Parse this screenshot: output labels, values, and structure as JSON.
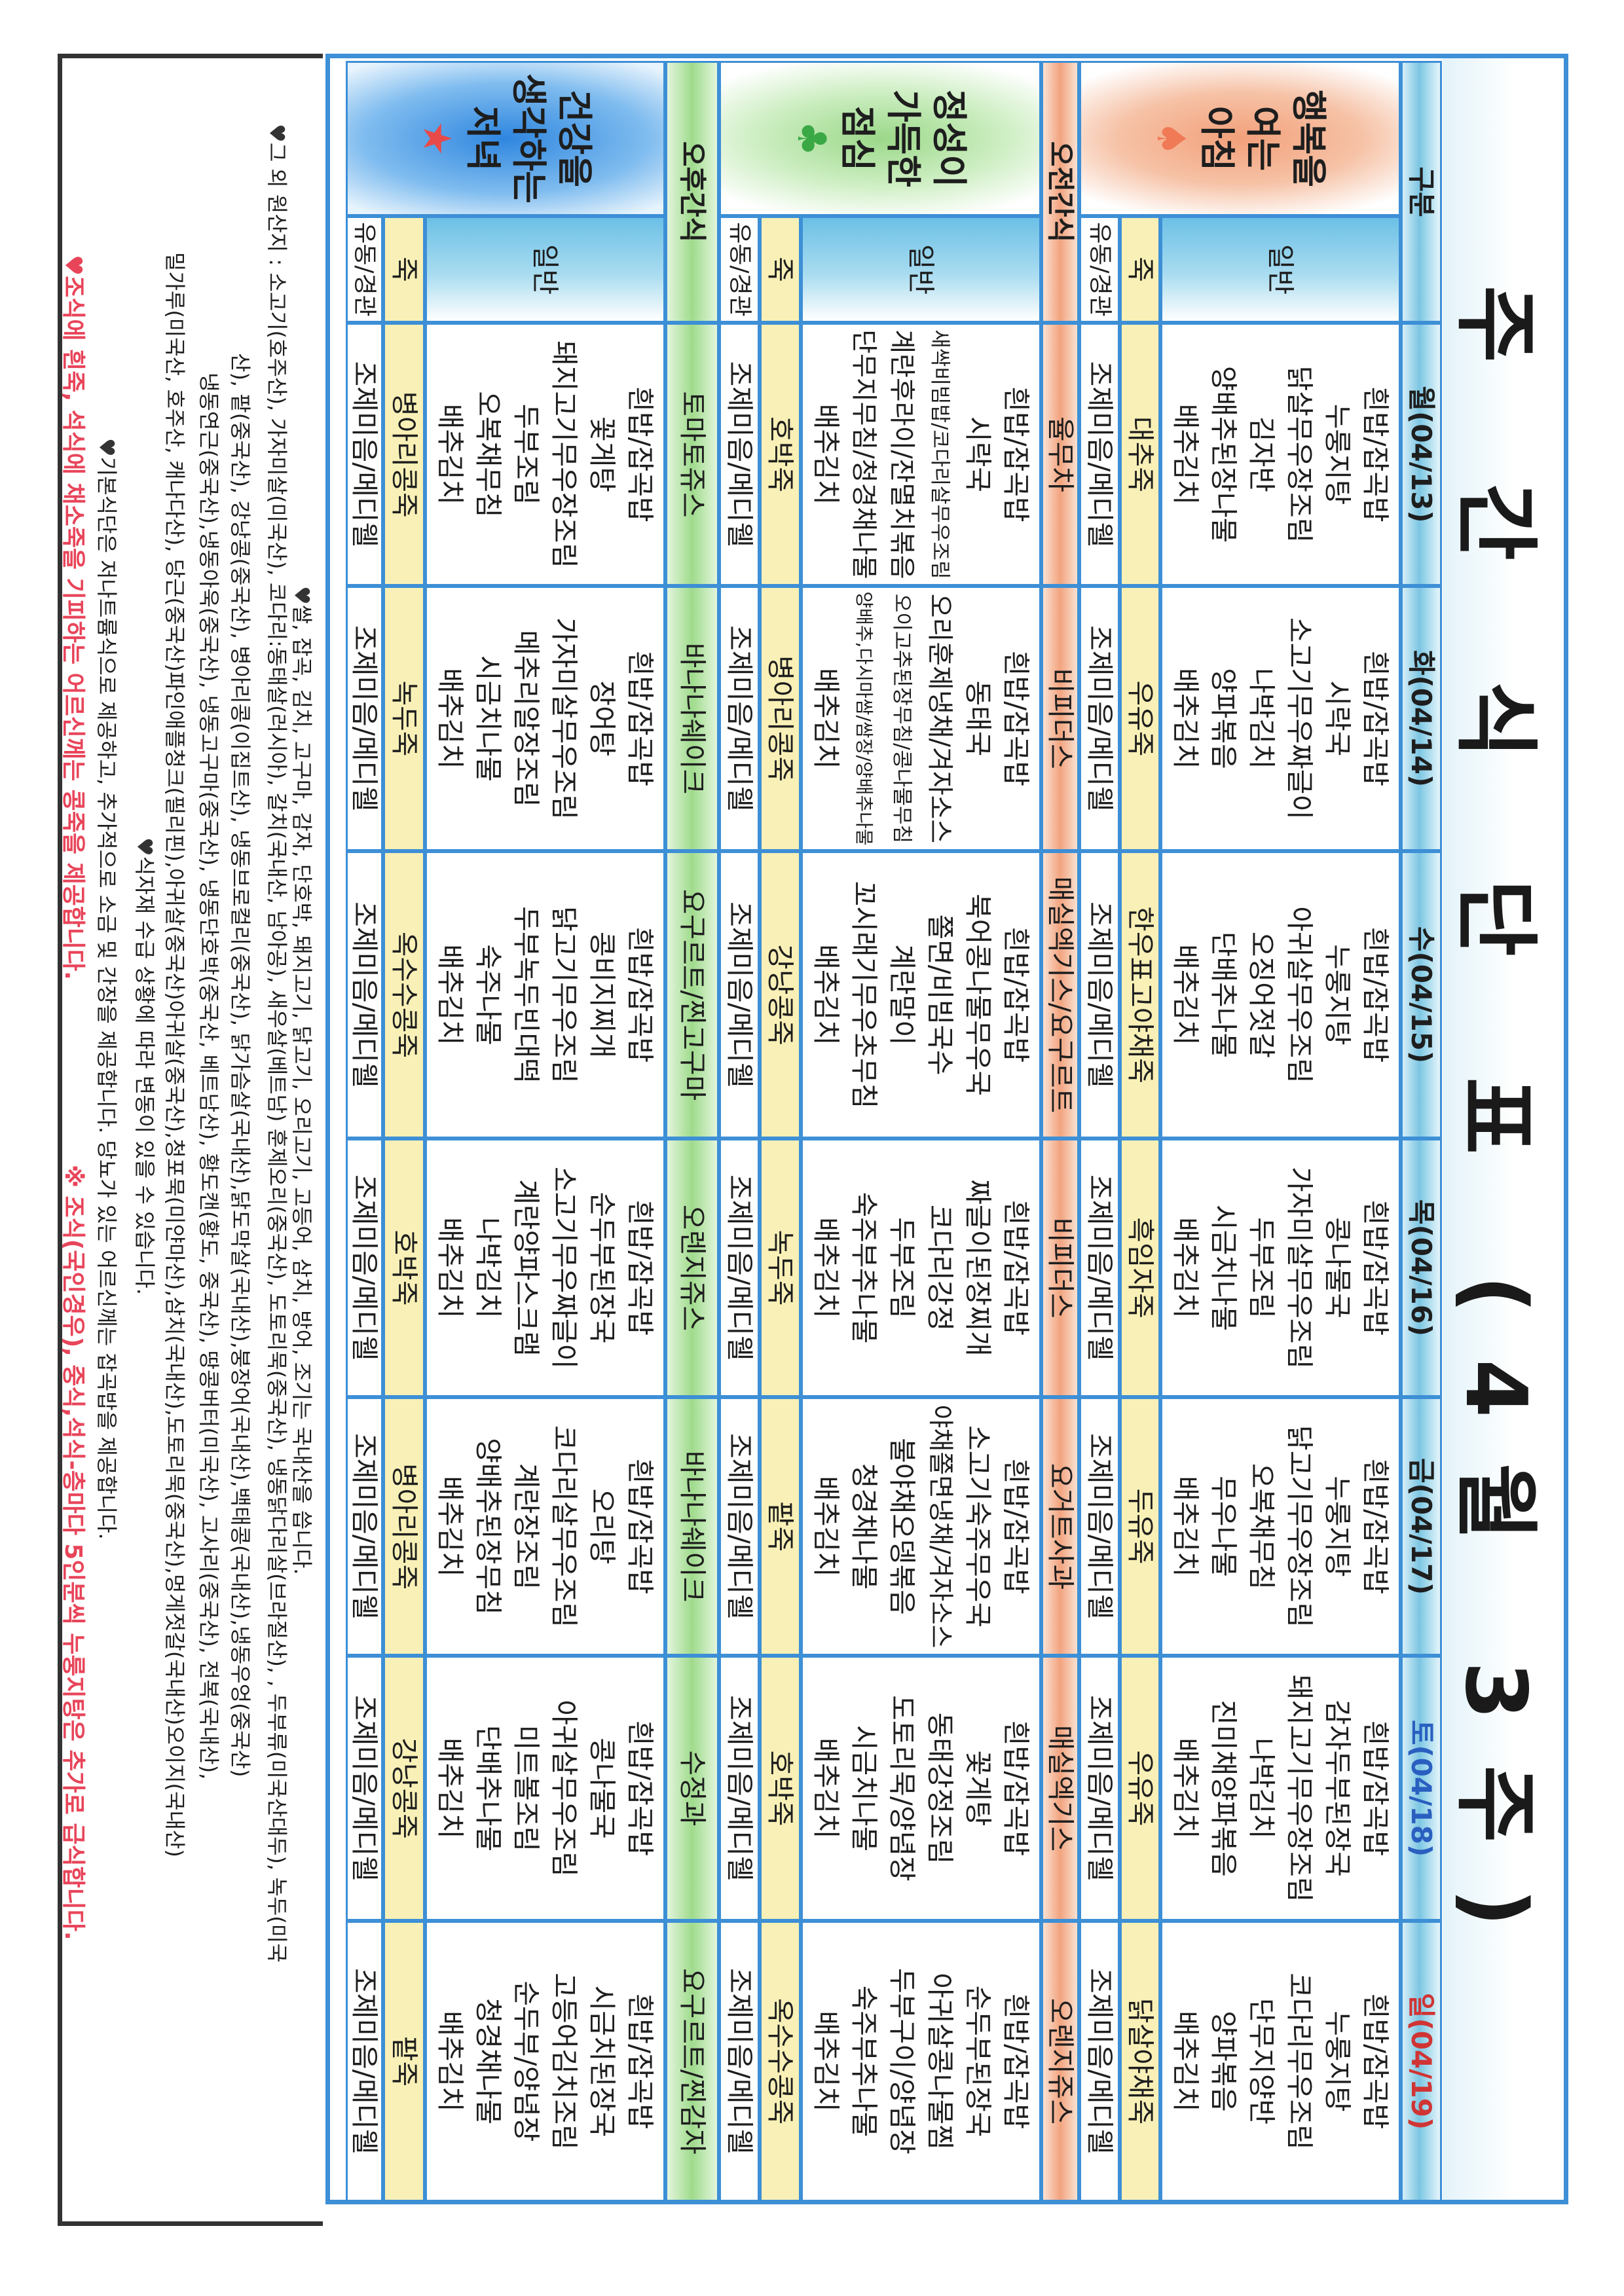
{
  "title": "주 간 식 단 표 (4월 3주)",
  "header": {
    "label": "구분",
    "days": [
      "월(04/13)",
      "화(04/14)",
      "수(04/15)",
      "목(04/16)",
      "금(04/17)",
      "토(04/18)",
      "일(04/19)"
    ]
  },
  "colors": {
    "grid": "#3d8fd6",
    "saturday": "#2a5fc0",
    "sunday": "#d03434",
    "porridge_row": "#f8f0b6",
    "note_red": "#e8455a"
  },
  "sub_labels": {
    "general": "일반",
    "porridge": "죽",
    "liquid": "유동/경관"
  },
  "meals": [
    {
      "key": "breakfast",
      "title_lines": [
        "행복을",
        "여는",
        "아침"
      ],
      "icon": "spade-icon",
      "icon_glyph": "♠",
      "icon_color": "#f07a55",
      "general": [
        [
          "흰밥/잡곡밥",
          "누룽지탕",
          "닭살무우장조림",
          "김자반",
          "양배추된장나물",
          "배추김치"
        ],
        [
          "흰밥/잡곡밥",
          "시락국",
          "소고기무우짜글이",
          "나박김치",
          "양파볶음",
          "배추김치"
        ],
        [
          "흰밥/잡곡밥",
          "누룽지탕",
          "아귀살무우조림",
          "오징어젓갈",
          "단배추나물",
          "배추김치"
        ],
        [
          "흰밥/잡곡밥",
          "콩나물국",
          "가자미살무우조림",
          "두부조림",
          "시금치나물",
          "배추김치"
        ],
        [
          "흰밥/잡곡밥",
          "누룽지탕",
          "닭고기무우장조림",
          "오복채무침",
          "무우나물",
          "배추김치"
        ],
        [
          "흰밥/잡곡밥",
          "감자두부된장국",
          "돼지고기무우장조림",
          "나박김치",
          "진미채양파볶음",
          "배추김치"
        ],
        [
          "흰밥/잡곡밥",
          "누룽지탕",
          "코다리무우조림",
          "단무지양반",
          "양파볶음",
          "배추김치"
        ]
      ],
      "porridge": [
        "대추죽",
        "우유죽",
        "한우표고야채죽",
        "흑임자죽",
        "두유죽",
        "우유죽",
        "닭살야채죽"
      ],
      "liquid": [
        "조제미음/메디웰",
        "조제미음/메디웰",
        "조제미음/메디웰",
        "조제미음/메디웰",
        "조제미음/메디웰",
        "조제미음/메디웰",
        "조제미음/메디웰"
      ]
    },
    {
      "key": "lunch",
      "title_lines": [
        "정성이",
        "가득한",
        "점심"
      ],
      "icon": "club-icon",
      "icon_glyph": "♣",
      "icon_color": "#3aa845",
      "general": [
        [
          "흰밥/잡곡밥",
          "시락국",
          "새싹비빔밥/코다리살무우조림",
          "계란후라이/잔멸치볶음",
          "단무지무침/청경채나물",
          "배추김치"
        ],
        [
          "흰밥/잡곡밥",
          "동태국",
          "오리훈제냉채/겨자소스",
          "오이고추된장무침/콩나물무침",
          "양배추,다시마쌈/쌈장/양배추나물",
          "배추김치"
        ],
        [
          "흰밥/잡곡밥",
          "북어콩나물무우국",
          "쫄면/비빔국수",
          "계란말이",
          "꼬시래기무우초무침",
          "배추김치"
        ],
        [
          "흰밥/잡곡밥",
          "짜글이된장찌개",
          "코다리강정",
          "두부조림",
          "숙주부추나물",
          "배추김치"
        ],
        [
          "흰밥/잡곡밥",
          "소고기숙주무우국",
          "야채쫄면냉채/겨자소스",
          "불야채오뎅볶음",
          "청경채나물",
          "배추김치"
        ],
        [
          "흰밥/잡곡밥",
          "꽃게탕",
          "동태강정조림",
          "도토리묵/양념장",
          "시금치나물",
          "배추김치"
        ],
        [
          "흰밥/잡곡밥",
          "순두부된장국",
          "아귀살콩나물찜",
          "두부구이/양념장",
          "숙주부추나물",
          "배추김치"
        ]
      ],
      "porridge": [
        "호박죽",
        "병아리콩죽",
        "강낭콩죽",
        "녹두죽",
        "팥죽",
        "호박죽",
        "옥수수콩죽"
      ],
      "liquid": [
        "조제미음/메디웰",
        "조제미음/메디웰",
        "조제미음/메디웰",
        "조제미음/메디웰",
        "조제미음/메디웰",
        "조제미음/메디웰",
        "조제미음/메디웰"
      ]
    },
    {
      "key": "dinner",
      "title_lines": [
        "건강을",
        "생각하는",
        "저녁"
      ],
      "icon": "star-icon",
      "icon_glyph": "★",
      "icon_color": "#e84a4a",
      "general": [
        [
          "흰밥/잡곡밥",
          "꽃게탕",
          "돼지고기무우장조림",
          "두부조림",
          "오복채무침",
          "배추김치"
        ],
        [
          "흰밥/잡곡밥",
          "장어탕",
          "가자미살무우조림",
          "메추리알장조림",
          "시금치나물",
          "배추김치"
        ],
        [
          "흰밥/잡곡밥",
          "콩비지찌개",
          "닭고기무우조림",
          "두부녹두빈대떡",
          "숙주나물",
          "배추김치"
        ],
        [
          "흰밥/잡곡밥",
          "순두부된장국",
          "소고기무우짜글이",
          "계란양파스크램",
          "나박김치",
          "배추김치"
        ],
        [
          "흰밥/잡곡밥",
          "오리탕",
          "코다리살무우조림",
          "계란장조림",
          "양배추된장무침",
          "배추김치"
        ],
        [
          "흰밥/잡곡밥",
          "콩나물국",
          "아귀살무우조림",
          "미트볼조림",
          "단배추나물",
          "배추김치"
        ],
        [
          "흰밥/잡곡밥",
          "시금치된장국",
          "고등어김치조림",
          "순두부/양념장",
          "청경채나물",
          "배추김치"
        ]
      ],
      "porridge": [
        "병아리콩죽",
        "녹두죽",
        "옥수수콩죽",
        "호박죽",
        "병아리콩죽",
        "강낭콩죽",
        "팥죽"
      ],
      "liquid": [
        "조제미음/메디웰",
        "조제미음/메디웰",
        "조제미음/메디웰",
        "조제미음/메디웰",
        "조제미음/메디웰",
        "조제미음/메디웰",
        "조제미음/메디웰"
      ]
    }
  ],
  "snacks": {
    "am": {
      "label": "오전간식",
      "items": [
        "율무차",
        "비피더스",
        "매실엑기스/요구르트",
        "비피더스",
        "요거트사과",
        "매실엑기스",
        "오렌지쥬스"
      ]
    },
    "pm": {
      "label": "오후간식",
      "items": [
        "토마토쥬스",
        "바나나쉐이크",
        "요구르트/찐고구마",
        "오렌지쥬스",
        "바나나쉐이크",
        "수정과",
        "요구르트/찐감자"
      ]
    }
  },
  "notes": [
    {
      "heart": true,
      "text": "쌀, 잡곡, 김치, 고구마, 감자, 단호박, 돼지고기, 닭고기, 오리고기, 고등어, 삼치, 방어, 조기는 국내산을 씁니다."
    },
    {
      "heart": true,
      "text": "그 외 원산지 : 소고기(호주산), 가자미살(미국산), 코다리:동태살(러시아), 갈치(국내산, 남아공), 새우살(베트남) 훈제오리(중국산), 도토리묵(중국산), 냉동닭다리살(브라질산), , 두부류(미국산대두), 녹두(미국"
    },
    {
      "heart": false,
      "text": "산), 팥(중국산), 강낭콩(중국산), 병아리콩(이집트산), 냉동브로컬리(중국산), 닭가슴살(국내산),닭도막살(국내산),붕장어(국내산),백태콩(국내산),냉동우엉(중국산)"
    },
    {
      "heart": false,
      "text": "냉동연근(중국산),냉동아욱(중국산), 냉동고구마(중국산), 냉동단호박(중국산, 베트남산), 황도캔(황도, 중국산), 땅콩버터(미국산), 고사리(중국산), 전복(국내산),"
    },
    {
      "heart": false,
      "text": "밀가루(미국산, 호주산, 캐나다산), 당근(중국산)파인애플청크(필리핀),아귀살(중국산)아귀살(중국산),청포묵(미얀마산),삼치(국내산),도토리묵(중국산),멍게젓갈(국내산)오이지(국내산)"
    },
    {
      "heart": true,
      "text": "식자재 수급 상황에 따라 변동이 있을 수 있습니다."
    },
    {
      "heart": true,
      "text": "기본식단은 저나트륨식으로 제공하고, 추가적으로 소금 및 간장을 제공합니다. 당뇨가 있는 어르신께는 잡곡밥을 제공합니다."
    },
    {
      "heart": true,
      "red": true,
      "text": "조식에 흰죽, 석식에 채소죽을 기피하는 어르신께는 콩죽을 제공합니다."
    },
    {
      "heart": false,
      "red": true,
      "text": "※ 조식(국인경우), 중식,석식-층마다 5인분씩 누룽지탕은 추가로 급식합니다."
    }
  ]
}
